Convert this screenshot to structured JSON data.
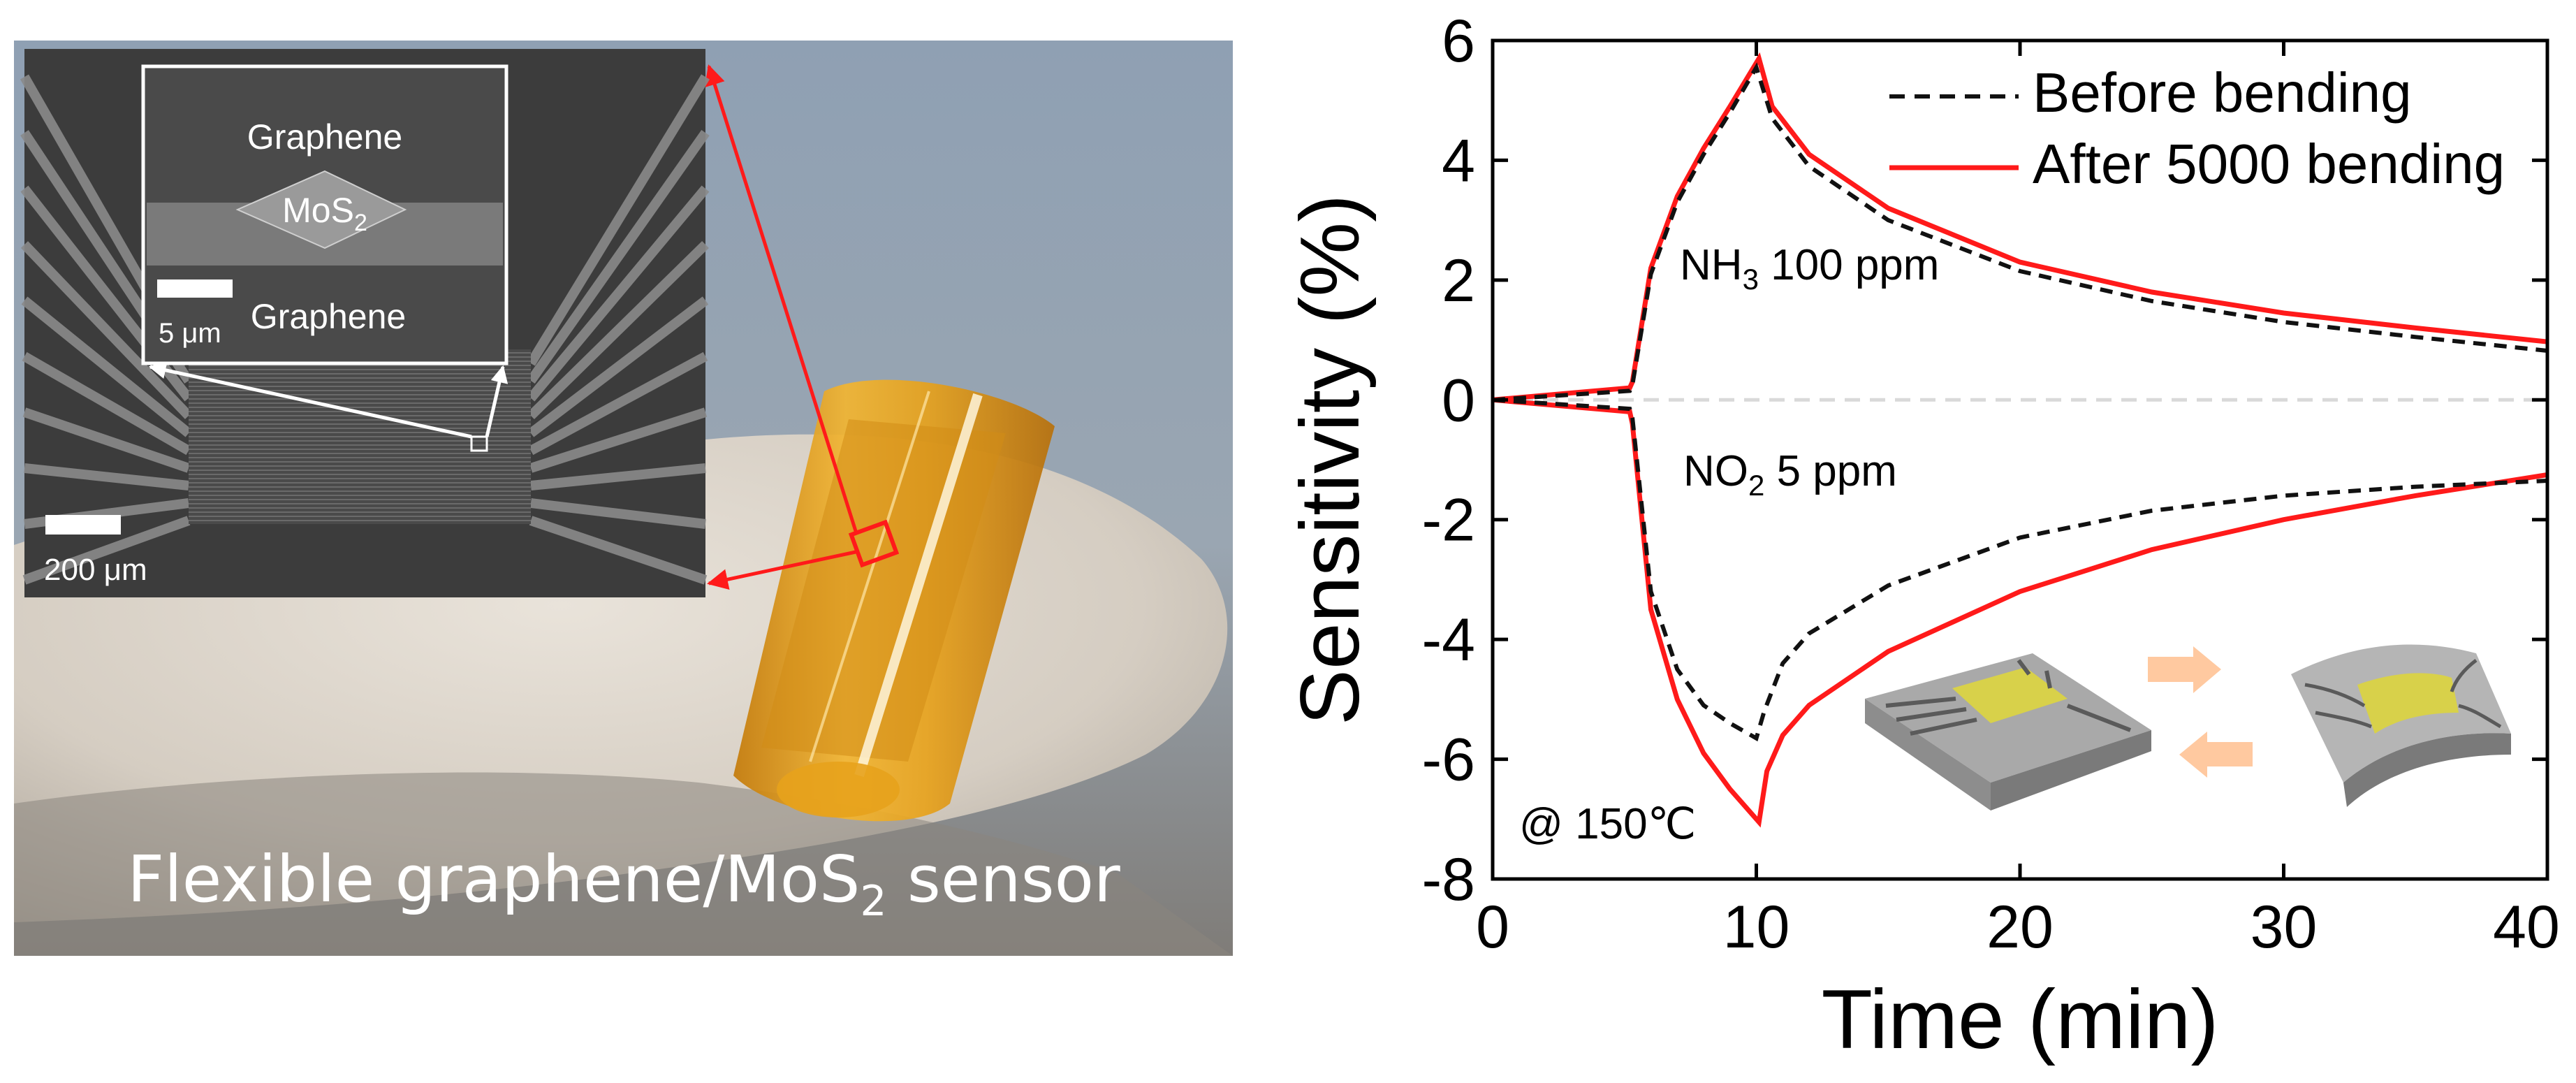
{
  "photo": {
    "caption_main": "Flexible graphene/MoS",
    "caption_sub": "2",
    "caption_end": " sensor",
    "sem": {
      "label_graphene_top": "Graphene",
      "label_mos2": "MoS",
      "label_mos2_sub": "2",
      "label_graphene_bottom": "Graphene",
      "scale_small": "5 μm",
      "scale_large": "200 μm"
    }
  },
  "colors": {
    "after_line": "#ff1a1a",
    "before_line": "#111111",
    "zero_line": "#d9d9d9",
    "arrow_red": "#ff1a1a",
    "tape": "#e0a020",
    "arrow_orange": "#ffc9a0"
  },
  "chart_data": {
    "type": "line",
    "xlabel": "Time (min)",
    "ylabel": "Sensitivity (%)",
    "xlim": [
      0,
      40
    ],
    "ylim": [
      -8,
      6
    ],
    "xticks": [
      0,
      10,
      20,
      30,
      40
    ],
    "yticks": [
      -8,
      -6,
      -4,
      -2,
      0,
      2,
      4,
      6
    ],
    "legend": {
      "position": "top-right",
      "entries": [
        {
          "label": "Before bending",
          "style": "dashed"
        },
        {
          "label": "After 5000 bending",
          "style": "solid"
        }
      ]
    },
    "annotations": {
      "nh3": {
        "text": "NH",
        "sub": "3",
        "rest": " 100 ppm"
      },
      "no2": {
        "text": "NO",
        "sub": "2",
        "rest": " 5 ppm"
      },
      "temp": "@ 150℃"
    },
    "series": [
      {
        "name": "After 5000 bending (NH3 100 ppm)",
        "style": "solid",
        "x": [
          0,
          5.2,
          5.3,
          6,
          7,
          8,
          9,
          10.1,
          10.6,
          12,
          15,
          20,
          25,
          30,
          35,
          40
        ],
        "y": [
          0,
          0.2,
          0.3,
          2.2,
          3.4,
          4.2,
          4.9,
          5.7,
          4.9,
          4.1,
          3.2,
          2.3,
          1.8,
          1.45,
          1.2,
          0.97
        ]
      },
      {
        "name": "Before bending (NH3 100 ppm)",
        "style": "dashed",
        "x": [
          0,
          5.2,
          5.3,
          6,
          7,
          8,
          9,
          10,
          10.6,
          12,
          15,
          20,
          25,
          30,
          35,
          40
        ],
        "y": [
          0,
          0.15,
          0.25,
          2.1,
          3.3,
          4.1,
          4.8,
          5.55,
          4.7,
          3.9,
          3.0,
          2.15,
          1.65,
          1.3,
          1.05,
          0.82
        ]
      },
      {
        "name": "After 5000 bending (NO2 5 ppm)",
        "style": "solid",
        "x": [
          0,
          5.2,
          5.3,
          6,
          7,
          8,
          9,
          10.1,
          10.4,
          11,
          12,
          15,
          20,
          25,
          30,
          35,
          40
        ],
        "y": [
          0,
          -0.2,
          -0.4,
          -3.5,
          -5.0,
          -5.9,
          -6.5,
          -7.05,
          -6.2,
          -5.6,
          -5.1,
          -4.2,
          -3.2,
          -2.5,
          -2.0,
          -1.6,
          -1.25
        ]
      },
      {
        "name": "Before bending (NO2 5 ppm)",
        "style": "dashed",
        "x": [
          0,
          5.2,
          5.3,
          6,
          7,
          8,
          9,
          10,
          10.3,
          11,
          12,
          15,
          20,
          25,
          30,
          35,
          40
        ],
        "y": [
          0,
          -0.15,
          -0.3,
          -3.2,
          -4.5,
          -5.1,
          -5.4,
          -5.65,
          -5.2,
          -4.4,
          -3.9,
          -3.1,
          -2.3,
          -1.85,
          -1.6,
          -1.45,
          -1.35
        ]
      }
    ]
  }
}
